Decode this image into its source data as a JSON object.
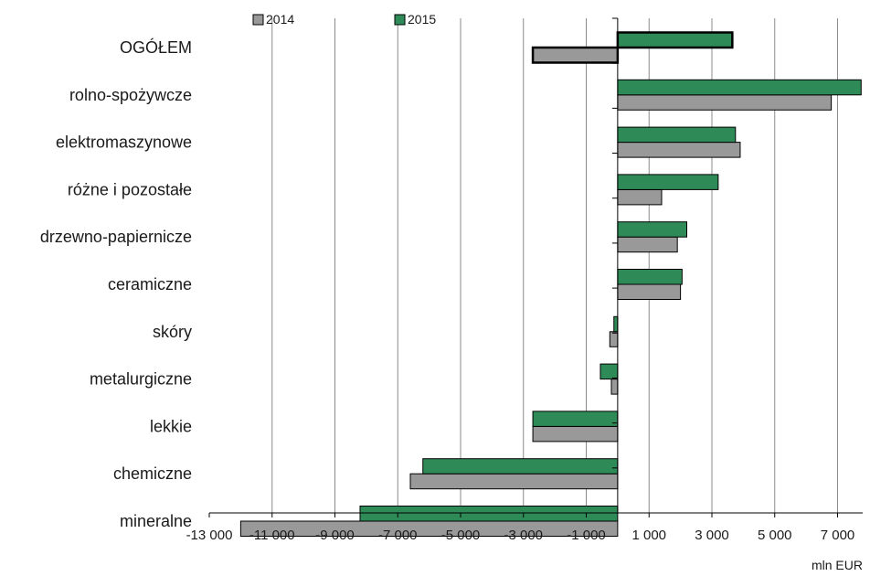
{
  "chart_data": {
    "type": "bar",
    "orientation": "horizontal",
    "categories": [
      "OGÓŁEM",
      "rolno-spożywcze",
      "elektromaszynowe",
      "różne i pozostałe",
      "drzewno-papiernicze",
      "ceramiczne",
      "skóry",
      "metalurgiczne",
      "lekkie",
      "chemiczne",
      "mineralne"
    ],
    "series": [
      {
        "name": "2014",
        "color": "#999999",
        "values": [
          -2700,
          6800,
          3900,
          1400,
          1900,
          2000,
          -250,
          -200,
          -2700,
          -6600,
          -12000
        ]
      },
      {
        "name": "2015",
        "color": "#2e8b57",
        "values": [
          3650,
          7750,
          3750,
          3200,
          2200,
          2050,
          -120,
          -550,
          -2700,
          -6200,
          -8200
        ]
      }
    ],
    "xlim": [
      -13000,
      7800
    ],
    "xticks": [
      -13000,
      -11000,
      -9000,
      -7000,
      -5000,
      -3000,
      -1000,
      1000,
      3000,
      5000,
      7000
    ],
    "xtick_labels": [
      "-13 000",
      "-11 000",
      "-9 000",
      "-7 000",
      "-5 000",
      "-3 000",
      "-1 000",
      "1 000",
      "3 000",
      "5 000",
      "7 000"
    ],
    "xlabel": "mln EUR",
    "grid": "vertical",
    "legend": "top",
    "highlight_category": "OGÓŁEM"
  }
}
